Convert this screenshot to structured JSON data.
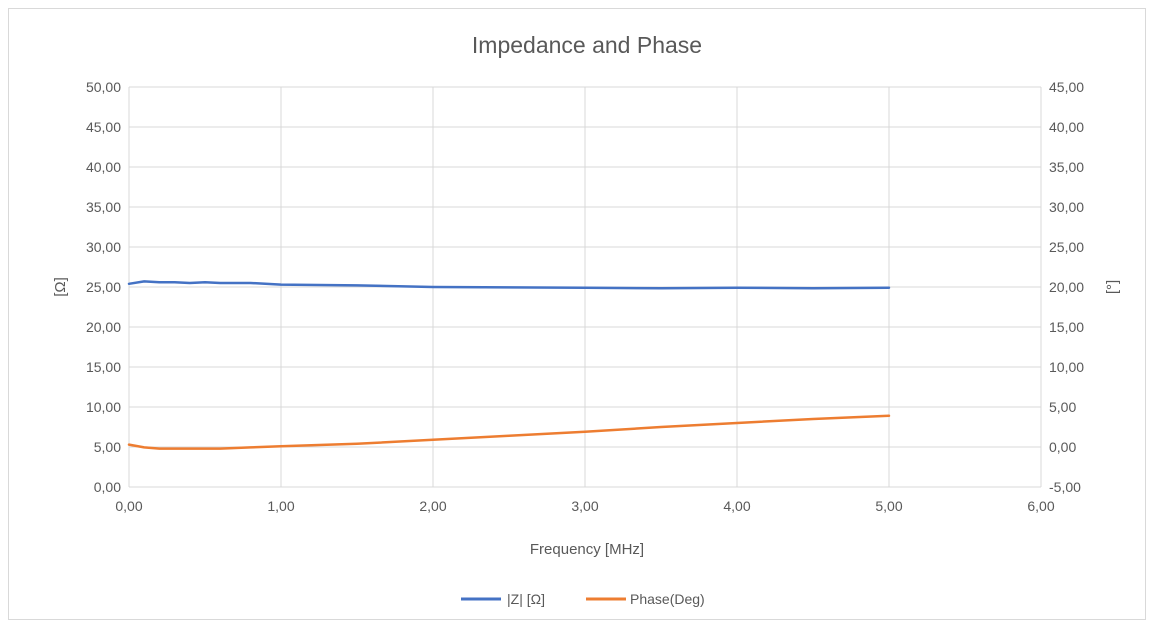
{
  "chart_data": {
    "type": "line",
    "title": "Impedance and Phase",
    "xlabel": "Frequency [MHz]",
    "ylabel": "[Ω]",
    "y2label": "[°]",
    "xlim": [
      0,
      6
    ],
    "ylim": [
      0,
      50
    ],
    "y2lim": [
      -5,
      45
    ],
    "x_ticks": [
      "0,00",
      "1,00",
      "2,00",
      "3,00",
      "4,00",
      "5,00",
      "6,00"
    ],
    "y_ticks": [
      "0,00",
      "5,00",
      "10,00",
      "15,00",
      "20,00",
      "25,00",
      "30,00",
      "35,00",
      "40,00",
      "45,00",
      "50,00"
    ],
    "y2_ticks": [
      "-5,00",
      "0,00",
      "5,00",
      "10,00",
      "15,00",
      "20,00",
      "25,00",
      "30,00",
      "35,00",
      "40,00",
      "45,00"
    ],
    "grid": "vertical and horizontal major gridlines",
    "legend_position": "bottom",
    "series": [
      {
        "name": "|Z| [Ω]",
        "axis": "left",
        "color": "#4472C4",
        "x": [
          0,
          0.1,
          0.2,
          0.3,
          0.4,
          0.5,
          0.6,
          0.8,
          1.0,
          1.5,
          2.0,
          2.5,
          3.0,
          3.5,
          4.0,
          4.5,
          5.0
        ],
        "y": [
          25.4,
          25.7,
          25.6,
          25.6,
          25.5,
          25.6,
          25.5,
          25.5,
          25.3,
          25.2,
          25.0,
          24.95,
          24.9,
          24.85,
          24.9,
          24.85,
          24.9
        ]
      },
      {
        "name": "Phase(Deg)",
        "axis": "right",
        "color": "#ED7D31",
        "x": [
          0,
          0.1,
          0.2,
          0.4,
          0.6,
          0.8,
          1.0,
          1.5,
          2.0,
          2.5,
          3.0,
          3.5,
          4.0,
          4.5,
          5.0
        ],
        "y": [
          0.3,
          -0.05,
          -0.2,
          -0.2,
          -0.2,
          -0.05,
          0.1,
          0.4,
          0.9,
          1.4,
          1.9,
          2.5,
          3.0,
          3.5,
          3.9
        ]
      }
    ]
  }
}
